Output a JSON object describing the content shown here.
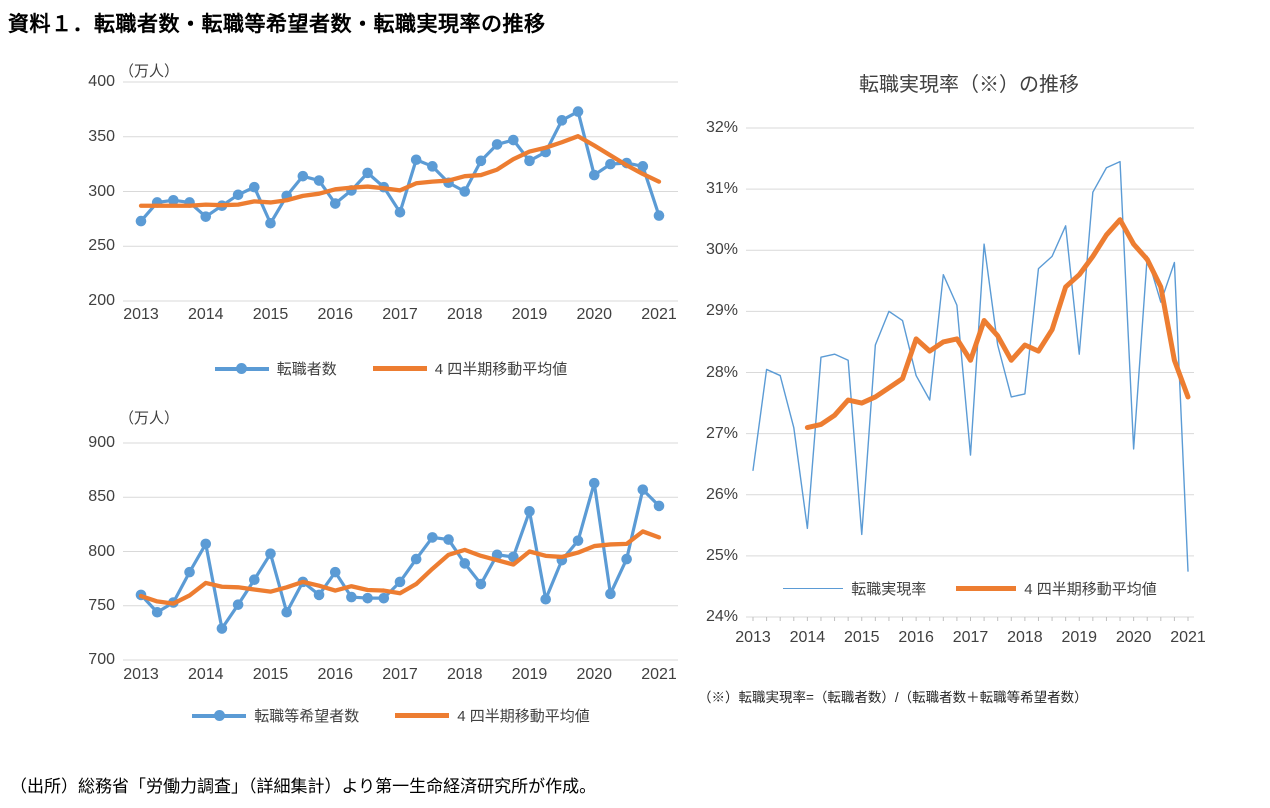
{
  "page": {
    "title": "資料１．転職者数・転職等希望者数・転職実現率の推移",
    "source_note": "（出所）総務省「労働力調査」（詳細集計）より第一生命経済研究所が作成。"
  },
  "colors": {
    "series_blue": "#5B9BD5",
    "series_orange": "#ED7D31",
    "gridline": "#D9D9D9",
    "axis_text": "#404040"
  },
  "chart_data": [
    {
      "id": "tenshokusha",
      "type": "line",
      "unit_label": "（万人）",
      "x_labels": [
        "2013",
        "2014",
        "2015",
        "2016",
        "2017",
        "2018",
        "2019",
        "2020",
        "2021"
      ],
      "x_frequency": "quarterly",
      "ylim": [
        200,
        400
      ],
      "yticks": [
        400,
        350,
        300,
        250,
        200
      ],
      "ytick_labels": [
        "400",
        "350",
        "300",
        "250",
        "200"
      ],
      "grid": true,
      "legend_position": "bottom",
      "series": [
        {
          "name": "転職者数",
          "color": "#5B9BD5",
          "marker": true,
          "values": [
            273,
            290,
            292,
            290,
            277,
            287,
            297,
            304,
            271,
            296,
            314,
            310,
            289,
            301,
            317,
            304,
            281,
            329,
            323,
            308,
            300,
            328,
            343,
            347,
            328,
            336,
            365,
            373,
            315,
            325,
            326,
            323,
            278
          ]
        },
        {
          "name": "4 四半期移動平均値",
          "color": "#ED7D31",
          "marker": false,
          "values": [
            287,
            287,
            287,
            287,
            288,
            287.5,
            288,
            291,
            290,
            292,
            296,
            298,
            302,
            303.5,
            304.5,
            303,
            301,
            307.5,
            309,
            310,
            314,
            315,
            320,
            329.5,
            336.5,
            340,
            345,
            350.5,
            342,
            333,
            324,
            316,
            309
          ]
        }
      ]
    },
    {
      "id": "kibousha",
      "type": "line",
      "unit_label": "（万人）",
      "x_labels": [
        "2013",
        "2014",
        "2015",
        "2016",
        "2017",
        "2018",
        "2019",
        "2020",
        "2021"
      ],
      "x_frequency": "quarterly",
      "ylim": [
        700,
        900
      ],
      "yticks": [
        900,
        850,
        800,
        750,
        700
      ],
      "ytick_labels": [
        "900",
        "850",
        "800",
        "750",
        "700"
      ],
      "grid": true,
      "legend_position": "bottom",
      "series": [
        {
          "name": "転職等希望者数",
          "color": "#5B9BD5",
          "marker": true,
          "values": [
            760,
            744,
            753,
            781,
            807,
            729,
            751,
            774,
            798,
            744,
            772,
            760,
            781,
            758,
            757,
            757,
            772,
            793,
            813,
            811,
            789,
            770,
            797,
            795,
            837,
            756,
            792,
            810,
            863,
            761,
            793,
            857,
            842
          ]
        },
        {
          "name": "4 四半期移動平均値",
          "color": "#ED7D31",
          "marker": false,
          "values": [
            759,
            754,
            752,
            759.5,
            771,
            767.5,
            767,
            765,
            763,
            767,
            772,
            768.5,
            764,
            768,
            764.5,
            764,
            761.5,
            770,
            784,
            797,
            801.5,
            796,
            792,
            788,
            800,
            796,
            795,
            799,
            805,
            806.5,
            807,
            818.5,
            813
          ]
        }
      ]
    },
    {
      "id": "jitsugenritsu",
      "type": "line",
      "title": "転職実現率（※）の推移",
      "note": "（※）転職実現率=（転職者数）/（転職者数＋転職等希望者数）",
      "x_labels": [
        "2013",
        "2014",
        "2015",
        "2016",
        "2017",
        "2018",
        "2019",
        "2020",
        "2021"
      ],
      "x_frequency": "quarterly",
      "ylim": [
        24,
        32
      ],
      "yticks": [
        32,
        31,
        30,
        29,
        28,
        27,
        26,
        25,
        24
      ],
      "ytick_labels": [
        "32%",
        "31%",
        "30%",
        "29%",
        "28%",
        "27%",
        "26%",
        "25%",
        "24%"
      ],
      "grid": true,
      "legend_position": "inside-bottom",
      "series": [
        {
          "name": "転職実現率",
          "color": "#5B9BD5",
          "marker": false,
          "values": [
            26.4,
            28.05,
            27.95,
            27.1,
            25.45,
            28.25,
            28.3,
            28.2,
            25.35,
            28.45,
            29.0,
            28.85,
            27.95,
            27.55,
            29.6,
            29.1,
            26.65,
            30.1,
            28.45,
            27.6,
            27.65,
            29.7,
            29.9,
            30.4,
            28.3,
            30.95,
            31.35,
            31.45,
            26.75,
            29.9,
            29.15,
            29.8,
            24.75
          ]
        },
        {
          "name": "4 四半期移動平均値",
          "color": "#ED7D31",
          "marker": false,
          "values": [
            null,
            null,
            null,
            null,
            27.1,
            27.15,
            27.3,
            27.55,
            27.5,
            27.6,
            27.75,
            27.9,
            28.55,
            28.35,
            28.5,
            28.55,
            28.2,
            28.85,
            28.6,
            28.2,
            28.45,
            28.35,
            28.7,
            29.4,
            29.6,
            29.9,
            30.25,
            30.5,
            30.1,
            29.85,
            29.4,
            28.2,
            27.6
          ]
        }
      ]
    }
  ]
}
